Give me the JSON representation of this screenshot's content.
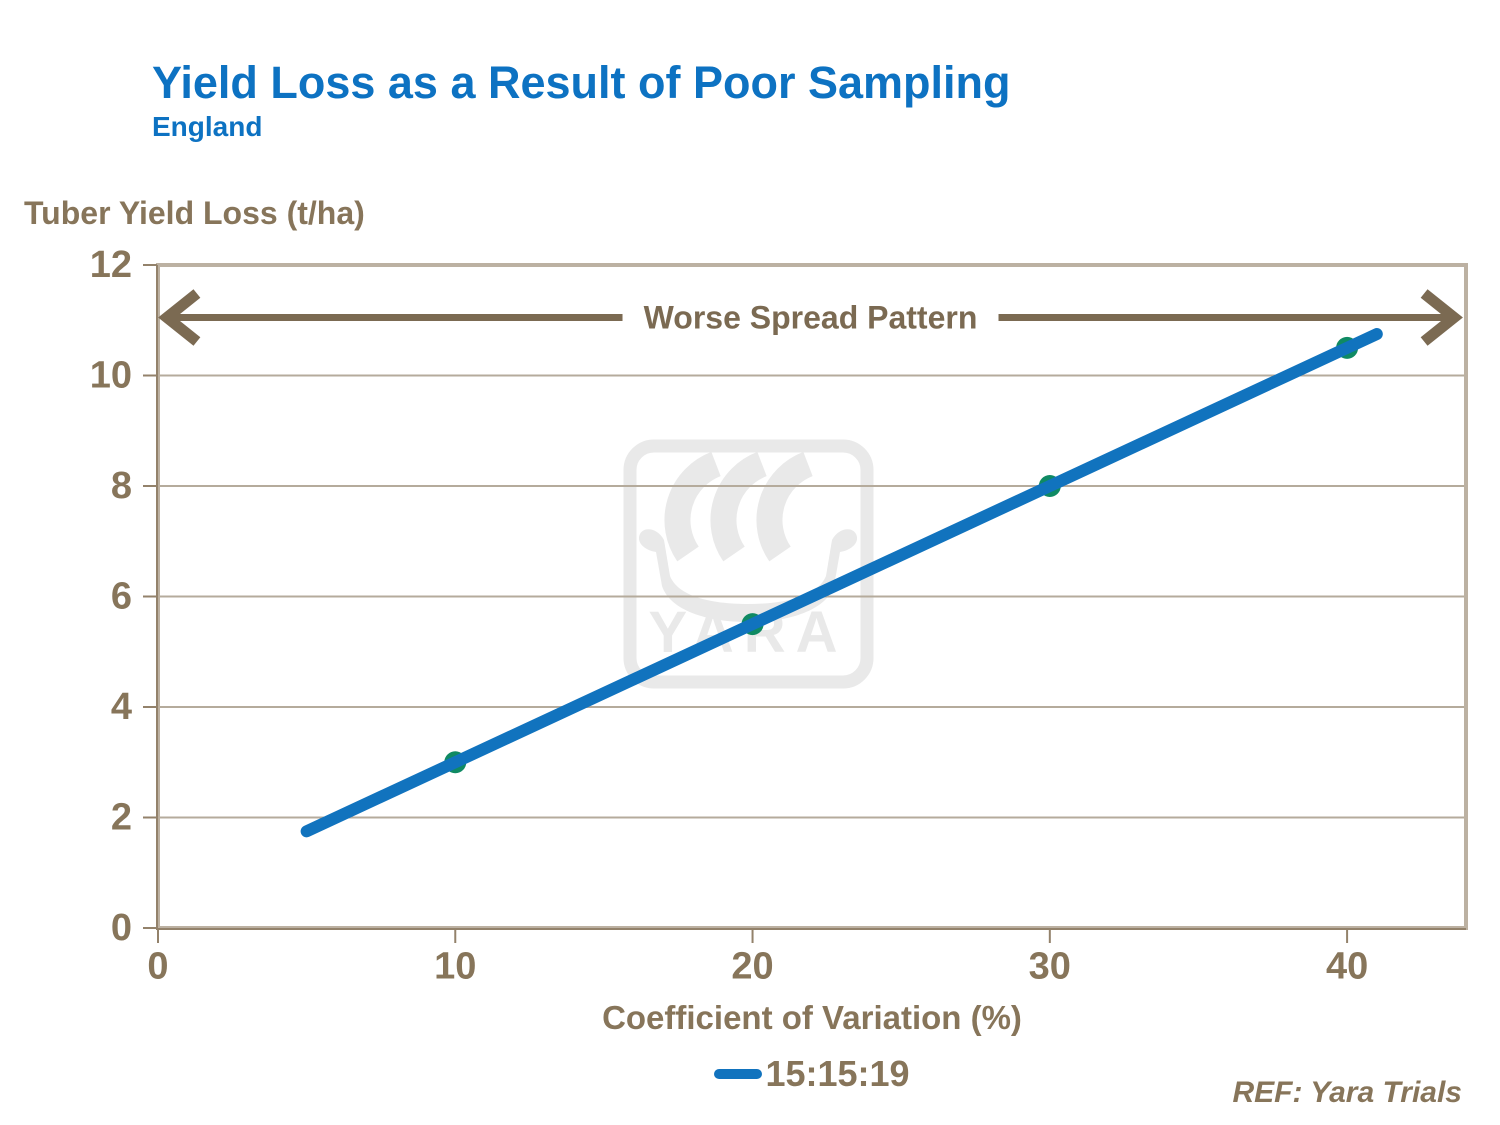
{
  "header": {
    "title": "Yield Loss as a Result of Poor Sampling",
    "subtitle": "England"
  },
  "footer": {
    "reference": "REF: Yara Trials"
  },
  "chart_data": {
    "type": "line",
    "title": "Yield Loss as a Result of Poor Sampling",
    "subtitle": "England",
    "ylabel": "Tuber Yield Loss (t/ha)",
    "xlabel": "Coefficient of Variation (%)",
    "xlim": [
      0,
      44
    ],
    "ylim": [
      0,
      12
    ],
    "x_ticks": [
      0,
      10,
      20,
      30,
      40
    ],
    "y_ticks": [
      12,
      10,
      8,
      6,
      4,
      2,
      0
    ],
    "grid": "horizontal",
    "legend_position": "bottom-center",
    "annotation": {
      "text": "Worse Spread Pattern",
      "y": 11.05,
      "x_start": 0.3,
      "x_end": 43.6
    },
    "watermark_text": "YARA",
    "series": [
      {
        "name": "15:15:19",
        "line_x": [
          5,
          41
        ],
        "line_y": [
          1.75,
          10.75
        ],
        "marker_points": [
          {
            "x": 10,
            "y": 3
          },
          {
            "x": 20,
            "y": 5.5
          },
          {
            "x": 30,
            "y": 8
          },
          {
            "x": 40,
            "y": 10.5
          }
        ]
      }
    ]
  },
  "colors": {
    "title_blue": "#0d72c2",
    "text_brown": "#87755a",
    "arrow_brown": "#7b6a52",
    "plot_border": "#bcb1a2",
    "axis_line": "#93826b",
    "gridline": "#b5ab9c",
    "series_line_blue": "#1173be",
    "marker_green": "#0f8a63",
    "watermark_gray": "#e9e9e9"
  }
}
